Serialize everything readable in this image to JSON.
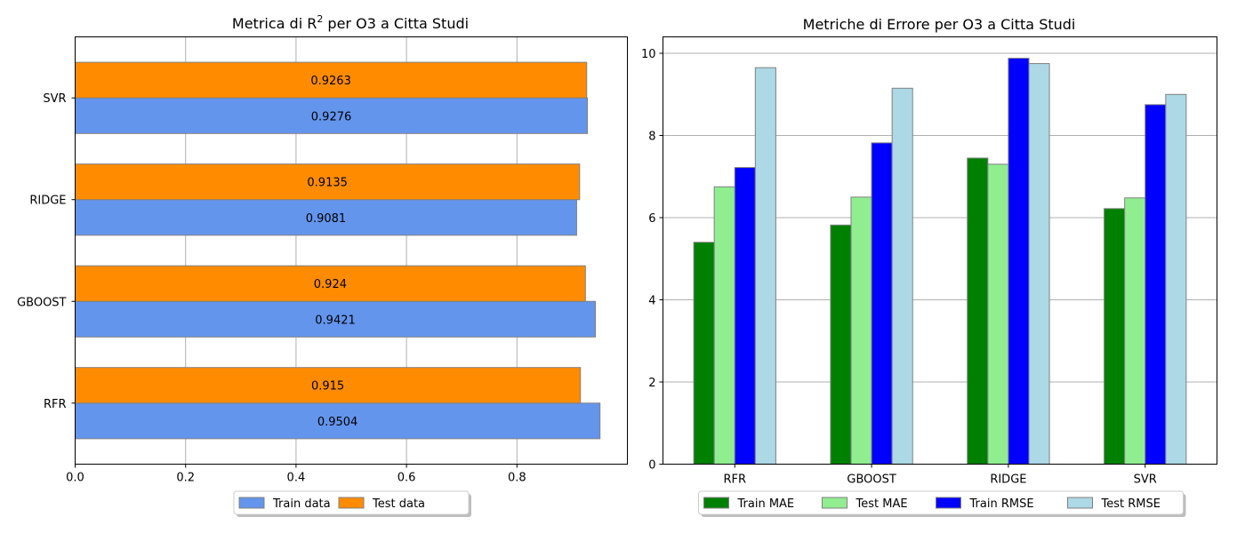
{
  "chart_data": [
    {
      "type": "bar",
      "orientation": "horizontal",
      "title": "Metrica di R² per O3 a Citta Studi",
      "title_main": "Metrica di R",
      "title_sup": "2",
      "title_rest": " per O3 a Citta Studi",
      "categories": [
        "RFR",
        "GBOOST",
        "RIDGE",
        "SVR"
      ],
      "series": [
        {
          "name": "Train data",
          "values": [
            0.9504,
            0.9421,
            0.9081,
            0.9276
          ],
          "labels": [
            "0.9504",
            "0.9421",
            "0.9081",
            "0.9276"
          ],
          "color": "#6495ED"
        },
        {
          "name": "Test data",
          "values": [
            0.915,
            0.924,
            0.9135,
            0.9263
          ],
          "labels": [
            "0.915",
            "0.924",
            "0.9135",
            "0.9263"
          ],
          "color": "#FF8C00"
        }
      ],
      "xlim": [
        0,
        1.0
      ],
      "xticks": [
        0.0,
        0.2,
        0.4,
        0.6,
        0.8
      ],
      "xtick_labels": [
        "0.0",
        "0.2",
        "0.4",
        "0.6",
        "0.8"
      ],
      "grid": "x",
      "legend": "bottom-center"
    },
    {
      "type": "bar",
      "title": "Metriche di Errore per O3 a Citta Studi",
      "categories": [
        "RFR",
        "GBOOST",
        "RIDGE",
        "SVR"
      ],
      "series": [
        {
          "name": "Train MAE",
          "values": [
            5.4,
            5.82,
            7.45,
            6.22
          ],
          "color": "#008000"
        },
        {
          "name": "Test MAE",
          "values": [
            6.75,
            6.5,
            7.3,
            6.48
          ],
          "color": "#90EE90"
        },
        {
          "name": "Train RMSE",
          "values": [
            7.22,
            7.82,
            9.88,
            8.75
          ],
          "color": "#0000FF"
        },
        {
          "name": "Test RMSE",
          "values": [
            9.65,
            9.15,
            9.75,
            9.0
          ],
          "color": "#ADD8E6"
        }
      ],
      "ylim": [
        0,
        10.4
      ],
      "yticks": [
        0,
        2,
        4,
        6,
        8,
        10
      ],
      "ytick_labels": [
        "0",
        "2",
        "4",
        "6",
        "8",
        "10"
      ],
      "grid": "y",
      "legend": "bottom-center"
    }
  ]
}
